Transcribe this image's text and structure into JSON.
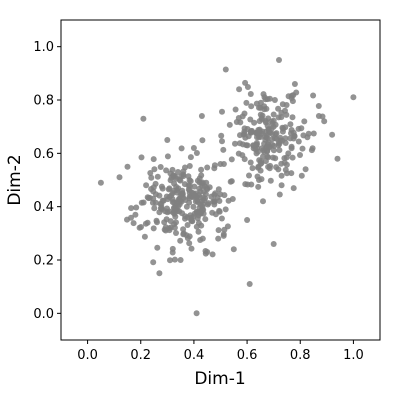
{
  "chart_data": {
    "type": "scatter",
    "title": "",
    "xlabel": "Dim-1",
    "ylabel": "Dim-2",
    "xlim": [
      -0.1,
      1.1
    ],
    "ylim": [
      -0.1,
      1.1
    ],
    "xticks": [
      "0.0",
      "0.2",
      "0.4",
      "0.6",
      "0.8",
      "1.0"
    ],
    "yticks": [
      "0.0",
      "0.2",
      "0.4",
      "0.6",
      "0.8",
      "1.0"
    ],
    "grid": false,
    "legend": "none",
    "point_color": "#808080",
    "clusters": [
      {
        "cx": 0.36,
        "cy": 0.41,
        "sx": 0.085,
        "sy": 0.085,
        "n": 260
      },
      {
        "cx": 0.68,
        "cy": 0.67,
        "sx": 0.075,
        "sy": 0.085,
        "n": 220
      }
    ],
    "points": [
      [
        0.05,
        0.49
      ],
      [
        1.0,
        0.81
      ],
      [
        0.41,
        0.0
      ],
      [
        0.94,
        0.58
      ],
      [
        0.12,
        0.51
      ],
      [
        0.61,
        0.11
      ],
      [
        0.72,
        0.95
      ],
      [
        0.87,
        0.74
      ],
      [
        0.21,
        0.73
      ],
      [
        0.57,
        0.84
      ],
      [
        0.43,
        0.74
      ],
      [
        0.5,
        0.56
      ],
      [
        0.15,
        0.55
      ],
      [
        0.18,
        0.37
      ],
      [
        0.3,
        0.65
      ],
      [
        0.55,
        0.24
      ],
      [
        0.66,
        0.42
      ],
      [
        0.73,
        0.48
      ],
      [
        0.7,
        0.26
      ],
      [
        0.82,
        0.54
      ],
      [
        0.35,
        0.2
      ],
      [
        0.27,
        0.15
      ],
      [
        0.45,
        0.23
      ],
      [
        0.6,
        0.35
      ],
      [
        0.92,
        0.67
      ],
      [
        0.78,
        0.86
      ],
      [
        0.89,
        0.72
      ],
      [
        0.4,
        0.62
      ],
      [
        0.22,
        0.48
      ],
      [
        0.48,
        0.45
      ]
    ]
  }
}
